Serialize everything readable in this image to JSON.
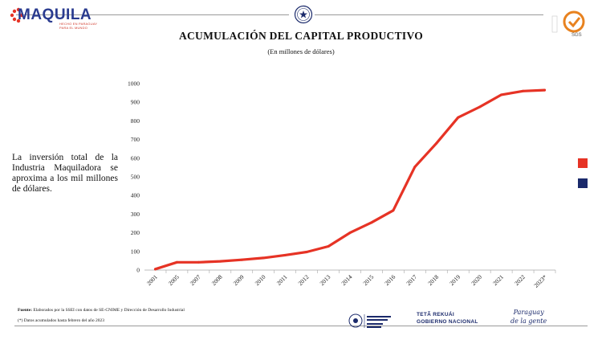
{
  "header": {
    "logo_word": "MAQUILA",
    "logo_tagline_1": "HECHO EN PARAGUAY",
    "logo_tagline_2": "PARA EL MUNDO",
    "sgs_label": "SGS"
  },
  "side_text": "La inversión total de la Industria Maquiladora se aproxima a los mil millones de dólares.",
  "footer": {
    "source_label": "Fuente:",
    "source_text": " Elaborados por la SSEI con datos de SE-CNIME y Dirección de Desarrollo Industrial",
    "note": "(*) Datos acumulados hasta febrero del año 2023",
    "gov_line1": "TETÃ REKUÁI",
    "gov_line2": "GOBIERNO NACIONAL",
    "slogan_1": "Paraguay",
    "slogan_2": "de la gente"
  },
  "colors": {
    "series": "#e63325",
    "legend_red": "#e63325",
    "legend_navy": "#1b2a6b",
    "axis": "#a6a6a6"
  },
  "chart_data": {
    "type": "line",
    "title": "ACUMULACIÓN DEL CAPITAL PRODUCTIVO",
    "subtitle": "(En millones de dólares)",
    "xlabel": "",
    "ylabel": "",
    "ylim": [
      0,
      1000
    ],
    "yticks": [
      0,
      100,
      200,
      300,
      400,
      500,
      600,
      700,
      800,
      900,
      1000
    ],
    "grid": false,
    "categories": [
      "2001",
      "2005",
      "2007",
      "2008",
      "2009",
      "2010",
      "2011",
      "2012",
      "2013",
      "2014",
      "2015",
      "2016",
      "2017",
      "2018",
      "2019",
      "2020",
      "2021",
      "2022",
      "2023*"
    ],
    "series": [
      {
        "values": [
          5,
          42,
          42,
          47,
          55,
          65,
          80,
          97,
          127,
          200,
          255,
          320,
          553,
          680,
          818,
          875,
          940,
          960,
          965
        ]
      }
    ]
  }
}
